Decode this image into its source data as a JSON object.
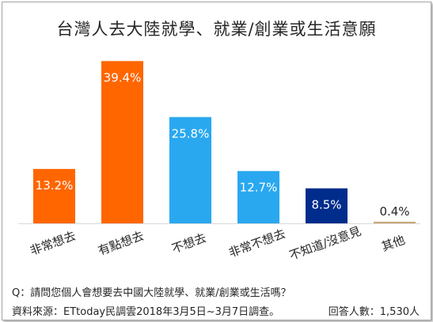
{
  "chart_data": {
    "type": "bar",
    "title": "台灣人去大陸就學、就業/創業或生活意願",
    "categories": [
      "非常想去",
      "有點想去",
      "不想去",
      "非常不想去",
      "不知道/沒意見",
      "其他"
    ],
    "values": [
      13.2,
      39.4,
      25.8,
      12.7,
      8.5,
      0.4
    ],
    "value_labels": [
      "13.2%",
      "39.4%",
      "25.8%",
      "12.7%",
      "8.5%",
      "0.4%"
    ],
    "bar_colors": [
      "#ff6600",
      "#ff6600",
      "#29a8f0",
      "#29a8f0",
      "#002c8c",
      "#c9a877"
    ],
    "ylim": [
      0,
      41
    ],
    "grid": false,
    "legend": "none",
    "xlabel": "",
    "ylabel": ""
  },
  "footer": {
    "question": "Q：請問您個人會想要去中國大陸就學、就業/創業或生活嗎？",
    "source": "資料來源：ETtoday民調雲2018年3月5日~3月7日調查。",
    "respondents": "回答人數：1,530人"
  }
}
